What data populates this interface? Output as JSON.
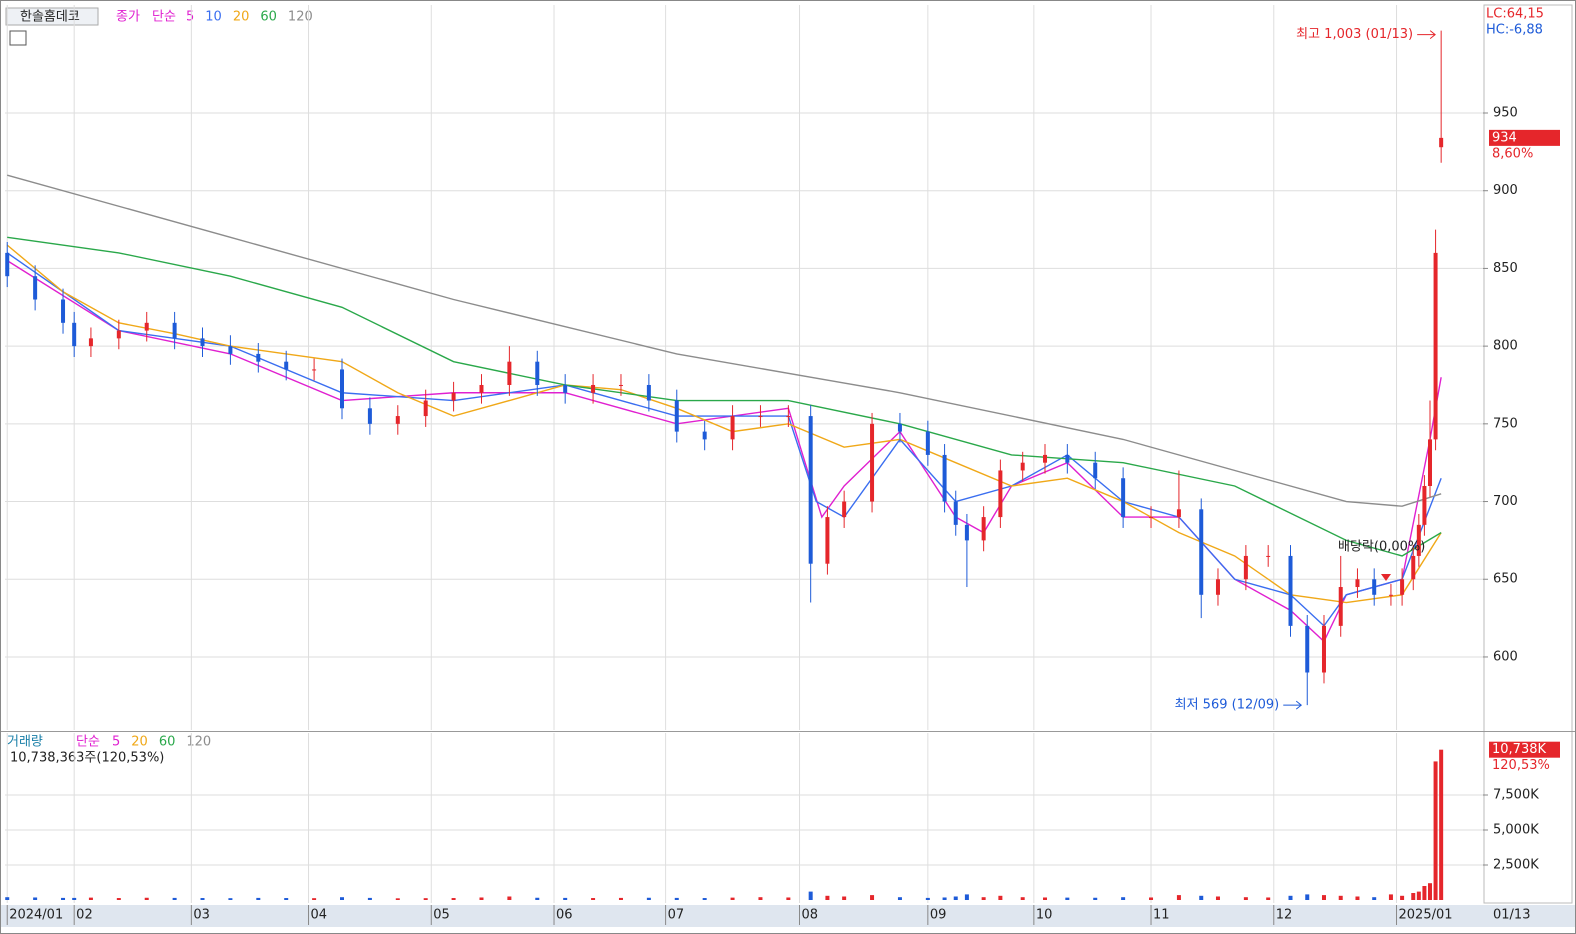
{
  "header": {
    "name": "한솔홈데코",
    "legend_title": "종가",
    "legend_method": "단순",
    "lc": "LC:64,15",
    "hc": "HC:-6,88"
  },
  "chart_data": {
    "type": "candlestick",
    "x": [
      0,
      5,
      10,
      12,
      15,
      20,
      25,
      30,
      35,
      40,
      45,
      50,
      55,
      60,
      65,
      70,
      75,
      80,
      85,
      90,
      95,
      100,
      105,
      110,
      115,
      120,
      125,
      130,
      135,
      140,
      144,
      147,
      150,
      155,
      160,
      165,
      168,
      170,
      172,
      175,
      178,
      182,
      186,
      190,
      195,
      200,
      205,
      210,
      214,
      217,
      222,
      226,
      230,
      233,
      236,
      239,
      242,
      245,
      248,
      250,
      252,
      253,
      254,
      255,
      256,
      257
    ],
    "open": [
      860,
      845,
      830,
      815,
      800,
      805,
      810,
      815,
      805,
      800,
      795,
      790,
      785,
      785,
      760,
      750,
      755,
      765,
      770,
      775,
      790,
      775,
      770,
      775,
      775,
      765,
      745,
      740,
      755,
      755,
      755,
      660,
      690,
      700,
      750,
      745,
      730,
      700,
      685,
      675,
      690,
      720,
      725,
      730,
      725,
      715,
      690,
      690,
      695,
      640,
      650,
      665,
      665,
      620,
      590,
      620,
      645,
      650,
      640,
      640,
      650,
      665,
      685,
      710,
      740,
      928
    ],
    "high": [
      867,
      852,
      837,
      822,
      812,
      817,
      822,
      822,
      812,
      807,
      802,
      797,
      792,
      792,
      767,
      762,
      772,
      777,
      782,
      800,
      797,
      782,
      782,
      782,
      782,
      772,
      752,
      762,
      762,
      762,
      762,
      697,
      707,
      757,
      757,
      752,
      737,
      707,
      692,
      697,
      727,
      732,
      737,
      737,
      732,
      722,
      697,
      720,
      702,
      657,
      672,
      672,
      672,
      627,
      627,
      665,
      657,
      657,
      647,
      657,
      672,
      692,
      717,
      765,
      875,
      1003
    ],
    "low": [
      838,
      823,
      808,
      793,
      793,
      798,
      803,
      798,
      793,
      788,
      783,
      778,
      778,
      753,
      743,
      743,
      748,
      758,
      763,
      768,
      768,
      763,
      763,
      768,
      758,
      738,
      733,
      733,
      748,
      748,
      635,
      653,
      683,
      693,
      738,
      723,
      693,
      678,
      645,
      668,
      683,
      713,
      718,
      718,
      708,
      683,
      683,
      683,
      625,
      633,
      643,
      658,
      613,
      569,
      583,
      613,
      638,
      633,
      633,
      633,
      643,
      658,
      678,
      703,
      733,
      918
    ],
    "close": [
      845,
      830,
      815,
      800,
      805,
      810,
      815,
      805,
      800,
      795,
      790,
      785,
      785,
      760,
      750,
      755,
      765,
      770,
      775,
      790,
      775,
      770,
      775,
      775,
      765,
      745,
      740,
      755,
      755,
      755,
      660,
      690,
      700,
      750,
      745,
      730,
      700,
      685,
      675,
      690,
      720,
      725,
      730,
      725,
      715,
      690,
      690,
      695,
      640,
      650,
      665,
      665,
      620,
      590,
      620,
      645,
      650,
      640,
      640,
      650,
      665,
      685,
      710,
      740,
      860,
      934
    ],
    "up_color": "#e5262b",
    "down_color": "#1e5bd8",
    "moving_averages": [
      {
        "name": "5",
        "color": "#e020d0",
        "x": [
          0,
          20,
          40,
          60,
          80,
          100,
          120,
          140,
          146,
          150,
          160,
          170,
          175,
          180,
          190,
          200,
          210,
          220,
          230,
          236,
          240,
          250,
          255,
          257
        ],
        "values": [
          855,
          810,
          795,
          765,
          770,
          770,
          750,
          760,
          690,
          710,
          745,
          690,
          680,
          710,
          725,
          690,
          690,
          650,
          630,
          610,
          640,
          650,
          740,
          780
        ]
      },
      {
        "name": "10",
        "color": "#3a6ef0",
        "x": [
          0,
          20,
          40,
          60,
          80,
          100,
          120,
          140,
          145,
          150,
          160,
          170,
          180,
          190,
          200,
          210,
          220,
          230,
          236,
          240,
          250,
          257
        ],
        "values": [
          860,
          810,
          800,
          770,
          765,
          775,
          755,
          755,
          700,
          690,
          740,
          700,
          710,
          730,
          700,
          690,
          650,
          640,
          620,
          640,
          650,
          715
        ]
      },
      {
        "name": "20",
        "color": "#f0a818",
        "x": [
          0,
          10,
          20,
          30,
          40,
          50,
          60,
          70,
          80,
          90,
          100,
          110,
          120,
          130,
          140,
          150,
          160,
          170,
          180,
          190,
          200,
          210,
          220,
          230,
          240,
          250,
          257
        ],
        "values": [
          865,
          835,
          815,
          808,
          800,
          795,
          790,
          770,
          755,
          765,
          775,
          772,
          760,
          745,
          750,
          735,
          740,
          725,
          710,
          715,
          700,
          680,
          665,
          640,
          635,
          640,
          680
        ]
      },
      {
        "name": "60",
        "color": "#2aa84a",
        "x": [
          0,
          20,
          40,
          60,
          80,
          100,
          120,
          140,
          160,
          180,
          200,
          220,
          240,
          250,
          257
        ],
        "values": [
          870,
          860,
          845,
          825,
          790,
          775,
          765,
          765,
          750,
          730,
          725,
          710,
          675,
          665,
          680
        ]
      },
      {
        "name": "120",
        "color": "#8c8c8c",
        "x": [
          0,
          40,
          80,
          120,
          160,
          200,
          240,
          250,
          257
        ],
        "values": [
          910,
          870,
          830,
          795,
          770,
          740,
          700,
          697,
          705
        ]
      }
    ],
    "xlim": [
      -0.4,
      264.5
    ],
    "xticks": [
      {
        "value": 0,
        "label": "2024/01"
      },
      {
        "value": 12,
        "label": "02"
      },
      {
        "value": 33,
        "label": "03"
      },
      {
        "value": 54,
        "label": "04"
      },
      {
        "value": 76,
        "label": "05"
      },
      {
        "value": 98,
        "label": "06"
      },
      {
        "value": 118,
        "label": "07"
      },
      {
        "value": 142,
        "label": "08"
      },
      {
        "value": 165,
        "label": "09"
      },
      {
        "value": 184,
        "label": "10"
      },
      {
        "value": 205,
        "label": "11"
      },
      {
        "value": 227,
        "label": "12"
      },
      {
        "value": 249,
        "label": "2025/01"
      }
    ],
    "ylim": [
      553,
      1019.5
    ],
    "yticks": [
      600,
      650,
      700,
      750,
      800,
      850,
      900,
      950
    ],
    "grid": true,
    "annotations": [
      "최고 1,003 (01/13)",
      "최저 569 (12/09)",
      "배당락(0,00%)"
    ],
    "last_price": {
      "value": 934,
      "change": "8,60%"
    },
    "volume": {
      "title": "거래량",
      "method": "단순",
      "ma": [
        {
          "name": "5",
          "color": "#e020d0"
        },
        {
          "name": "20",
          "color": "#f0a818"
        },
        {
          "name": "60",
          "color": "#2aa84a"
        },
        {
          "name": "120",
          "color": "#8c8c8c"
        }
      ],
      "summary": "10,738,363주(120,53%)",
      "values": [
        200,
        180,
        150,
        150,
        170,
        140,
        160,
        150,
        140,
        130,
        150,
        140,
        130,
        200,
        150,
        120,
        130,
        140,
        180,
        250,
        160,
        150,
        140,
        150,
        160,
        150,
        140,
        170,
        200,
        180,
        600,
        300,
        250,
        350,
        200,
        150,
        180,
        250,
        400,
        200,
        300,
        200,
        180,
        170,
        160,
        200,
        180,
        350,
        300,
        250,
        200,
        180,
        300,
        400,
        350,
        300,
        250,
        200,
        400,
        300,
        500,
        600,
        1000,
        1200,
        9900,
        10738
      ],
      "ylim": [
        0,
        11930
      ],
      "yticks": [
        {
          "value": 2500,
          "label": "2,500K"
        },
        {
          "value": 5000,
          "label": "5,000K"
        },
        {
          "value": 7500,
          "label": "7,500K"
        }
      ],
      "last": {
        "value": 10738,
        "label": "10,738K",
        "change": "120,53%"
      }
    },
    "end_date": "01/13"
  }
}
